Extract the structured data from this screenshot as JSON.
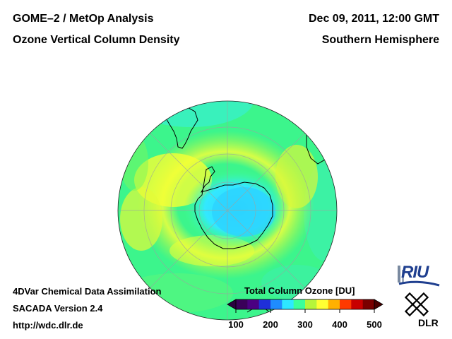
{
  "header": {
    "title_left_1": "GOME–2 / MetOp Analysis",
    "title_left_2": "Ozone Vertical Column Density",
    "date": "Dec 09, 2011, 12:00 GMT",
    "region": "Southern Hemisphere"
  },
  "footer": {
    "method": "4DVar Chemical Data Assimilation",
    "version": "SACADA Version 2.4",
    "url": "http://wdc.dlr.de"
  },
  "colorbar": {
    "title": "Total Column Ozone [DU]",
    "min": 100,
    "max": 500,
    "ticks": [
      {
        "value": 100,
        "label": "100"
      },
      {
        "value": 200,
        "label": "200"
      },
      {
        "value": 300,
        "label": "300"
      },
      {
        "value": 400,
        "label": "400"
      },
      {
        "value": 500,
        "label": "500"
      }
    ],
    "colors": [
      "#3a0059",
      "#4b0082",
      "#1f2fd8",
      "#1f8cff",
      "#2ee8ff",
      "#3bff9a",
      "#b6f53a",
      "#ffff33",
      "#ffb000",
      "#ff3a00",
      "#c80000",
      "#7a0000"
    ]
  },
  "map": {
    "projection": "orthographic south-polar",
    "ozone_field": {
      "pole_value_du": 240,
      "ring_value_du": 350,
      "background_value_du": 290
    }
  },
  "logos": {
    "riu": "RIU",
    "dlr": "DLR"
  }
}
